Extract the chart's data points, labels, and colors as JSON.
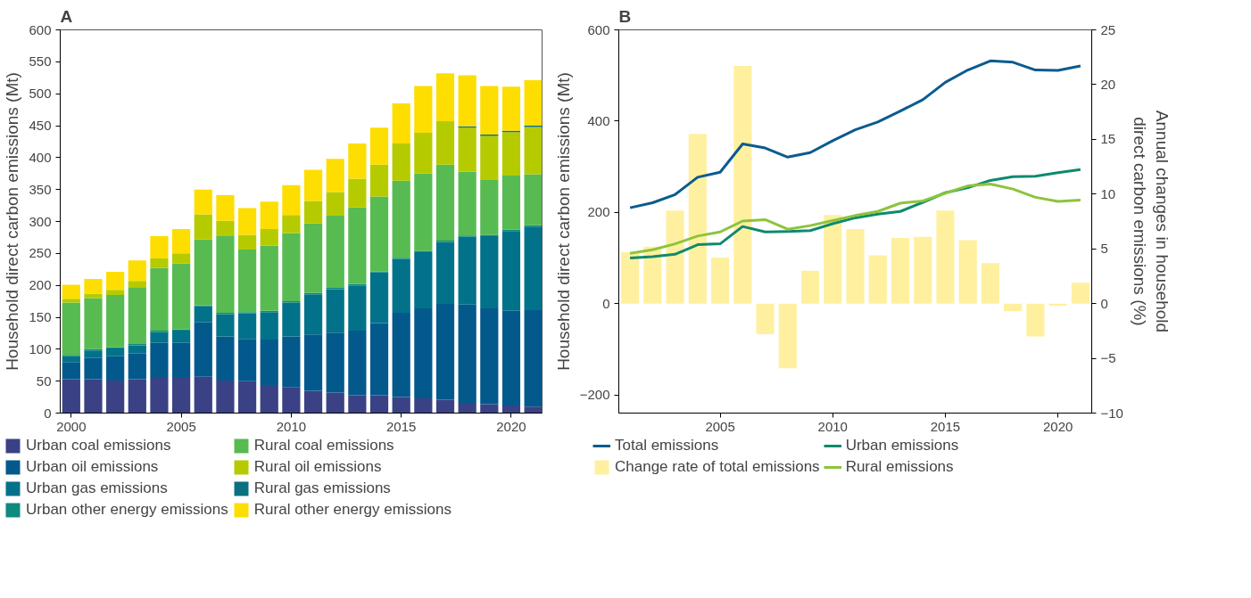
{
  "chart_data": [
    {
      "type": "bar",
      "title": "A",
      "ylabel": "Household direct carbon emissions (Mt)",
      "stacked": true,
      "legend": "bottom",
      "x": [
        2000,
        2001,
        2002,
        2003,
        2004,
        2005,
        2006,
        2007,
        2008,
        2009,
        2010,
        2011,
        2012,
        2013,
        2014,
        2015,
        2016,
        2017,
        2018,
        2019,
        2020,
        2021
      ],
      "xlim": [
        1999.5,
        2021.4
      ],
      "xticks": [
        2000,
        2005,
        2010,
        2015,
        2020
      ],
      "ylim": [
        0,
        600
      ],
      "yticks": [
        0,
        50,
        100,
        150,
        200,
        250,
        300,
        350,
        400,
        450,
        500,
        550,
        600
      ],
      "series": [
        {
          "name": "Urban coal emissions",
          "color": "#3a4285",
          "values": [
            53,
            53,
            51,
            53,
            55,
            55,
            57,
            51,
            50,
            44,
            40,
            35,
            32,
            28,
            28,
            25,
            23,
            21,
            16,
            14,
            12,
            10
          ]
        },
        {
          "name": "Urban oil emissions",
          "color": "#03598c",
          "values": [
            27,
            33,
            38,
            40,
            55,
            55,
            85,
            69,
            66,
            71,
            80,
            88,
            94,
            101,
            113,
            132,
            141,
            150,
            154,
            150,
            148,
            151
          ]
        },
        {
          "name": "Urban gas emissions",
          "color": "#02728a",
          "values": [
            9,
            12,
            12,
            13,
            17,
            19,
            25,
            35,
            40,
            43,
            53,
            63,
            68,
            71,
            79,
            84,
            88,
            97,
            106,
            113,
            125,
            131
          ]
        },
        {
          "name": "Urban other energy emissions",
          "color": "#0e8a7e",
          "values": [
            2,
            2,
            2,
            2,
            2,
            2,
            2,
            2,
            2,
            2,
            2,
            2,
            2,
            2,
            2,
            2,
            2,
            2,
            2,
            2,
            2,
            2
          ]
        },
        {
          "name": "Rural coal emissions",
          "color": "#57bb52",
          "values": [
            82,
            80,
            82,
            89,
            98,
            103,
            103,
            121,
            98,
            102,
            107,
            109,
            113,
            120,
            117,
            121,
            121,
            119,
            100,
            86,
            85,
            80
          ]
        },
        {
          "name": "Rural oil emissions",
          "color": "#b5cb00",
          "values": [
            6,
            7,
            8,
            10,
            15,
            16,
            39,
            23,
            23,
            26,
            28,
            35,
            37,
            45,
            50,
            58,
            64,
            68,
            69,
            69,
            68,
            74
          ]
        },
        {
          "name": "Rural gas emissions",
          "color": "#0b7080",
          "values": [
            0,
            0,
            0,
            0,
            0,
            0,
            0,
            0,
            0,
            0,
            0,
            0,
            0,
            0,
            0,
            0,
            0,
            0,
            2,
            2,
            2,
            2
          ]
        },
        {
          "name": "Rural other energy emissions",
          "color": "#fedd00",
          "values": [
            22,
            23,
            28,
            32,
            35,
            38,
            39,
            40,
            42,
            43,
            47,
            49,
            52,
            55,
            58,
            63,
            73,
            75,
            80,
            76,
            69,
            71
          ]
        }
      ]
    },
    {
      "type": "line",
      "title": "B",
      "ylabel": "Household direct carbon emissions (Mt)",
      "y2label": "Annual changes in household direct carbon emissions (%)",
      "legend": "bottom",
      "x": [
        2001,
        2002,
        2003,
        2004,
        2005,
        2006,
        2007,
        2008,
        2009,
        2010,
        2011,
        2012,
        2013,
        2014,
        2015,
        2016,
        2017,
        2018,
        2019,
        2020,
        2021
      ],
      "xlim": [
        2000.5,
        2021.5
      ],
      "xticks": [
        2005,
        2010,
        2015,
        2020
      ],
      "ylim": [
        -240,
        600
      ],
      "yticks": [
        -200,
        0,
        200,
        400,
        600
      ],
      "y2lim": [
        -10,
        25
      ],
      "y2ticks": [
        -10,
        -5,
        0,
        5,
        10,
        15,
        20,
        25
      ],
      "series": [
        {
          "name": "Total emissions",
          "type": "line",
          "color": "#0b5b8f",
          "values": [
            210,
            221,
            239,
            277,
            288,
            350,
            341,
            321,
            331,
            357,
            381,
            398,
            422,
            447,
            485,
            512,
            532,
            529,
            512,
            511,
            521
          ]
        },
        {
          "name": "Change rate of total emissions",
          "type": "bar",
          "axis": "y2",
          "color": "#fff0a0",
          "values": [
            4.7,
            5.2,
            8.5,
            15.5,
            4.2,
            21.7,
            -2.8,
            -5.9,
            3.0,
            8.1,
            6.8,
            4.4,
            6.0,
            6.1,
            8.5,
            5.8,
            3.7,
            -0.7,
            -3.0,
            -0.2,
            1.9
          ]
        },
        {
          "name": "Urban emissions",
          "type": "line",
          "color": "#0e8a6e",
          "values": [
            100,
            103,
            108,
            129,
            131,
            169,
            157,
            158,
            160,
            175,
            188,
            196,
            202,
            222,
            243,
            254,
            270,
            278,
            279,
            287,
            294
          ]
        },
        {
          "name": "Rural emissions",
          "type": "line",
          "color": "#8cc43c",
          "values": [
            110,
            118,
            131,
            148,
            157,
            181,
            184,
            163,
            171,
            182,
            193,
            202,
            220,
            225,
            242,
            258,
            262,
            251,
            233,
            224,
            227
          ]
        }
      ]
    }
  ]
}
